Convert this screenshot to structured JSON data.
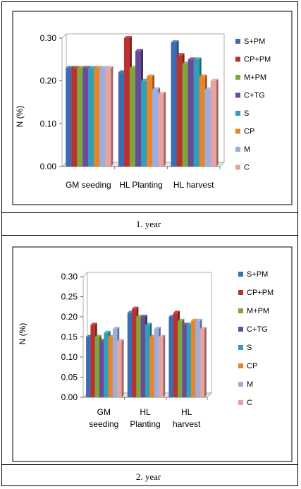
{
  "captions": [
    "1. year",
    "2. year"
  ],
  "colors": [
    "#3c6cb4",
    "#b8332f",
    "#7fa63a",
    "#6a4a9a",
    "#2f9fba",
    "#e8842a",
    "#9aaee0",
    "#e8a3a0"
  ],
  "chart_data": [
    {
      "type": "bar",
      "title": "",
      "xlabel": "",
      "ylabel": "N (%)",
      "ylim": [
        0,
        0.3
      ],
      "yticks": [
        "0.00",
        "0.10",
        "0.20",
        "0.30"
      ],
      "grid": false,
      "legend_position": "right",
      "categories": [
        "GM seeding",
        "HL Planting",
        "HL harvest"
      ],
      "series": [
        {
          "name": "S+PM",
          "values": [
            0.23,
            0.22,
            0.29
          ]
        },
        {
          "name": "CP+PM",
          "values": [
            0.23,
            0.3,
            0.26
          ]
        },
        {
          "name": "M+PM",
          "values": [
            0.23,
            0.23,
            0.24
          ]
        },
        {
          "name": "C+TG",
          "values": [
            0.23,
            0.27,
            0.25
          ]
        },
        {
          "name": "S",
          "values": [
            0.23,
            0.2,
            0.25
          ]
        },
        {
          "name": "CP",
          "values": [
            0.23,
            0.21,
            0.21
          ]
        },
        {
          "name": "M",
          "values": [
            0.23,
            0.18,
            0.18
          ]
        },
        {
          "name": "C",
          "values": [
            0.23,
            0.17,
            0.2
          ]
        }
      ]
    },
    {
      "type": "bar",
      "title": "",
      "xlabel": "",
      "ylabel": "N (%)",
      "ylim": [
        0,
        0.3
      ],
      "yticks": [
        "0.00",
        "0.05",
        "0.10",
        "0.15",
        "0.20",
        "0.25",
        "0.30"
      ],
      "grid": false,
      "legend_position": "right",
      "categories": [
        "GM seeding",
        "HL Planting",
        "HL harvest"
      ],
      "series": [
        {
          "name": "S+PM",
          "values": [
            0.15,
            0.21,
            0.2
          ]
        },
        {
          "name": "CP+PM",
          "values": [
            0.18,
            0.22,
            0.21
          ]
        },
        {
          "name": "M+PM",
          "values": [
            0.15,
            0.2,
            0.19
          ]
        },
        {
          "name": "C+TG",
          "values": [
            0.14,
            0.2,
            0.18
          ]
        },
        {
          "name": "S",
          "values": [
            0.16,
            0.18,
            0.18
          ]
        },
        {
          "name": "CP",
          "values": [
            0.15,
            0.15,
            0.19
          ]
        },
        {
          "name": "M",
          "values": [
            0.17,
            0.17,
            0.19
          ]
        },
        {
          "name": "C",
          "values": [
            0.14,
            0.15,
            0.17
          ]
        }
      ]
    }
  ]
}
